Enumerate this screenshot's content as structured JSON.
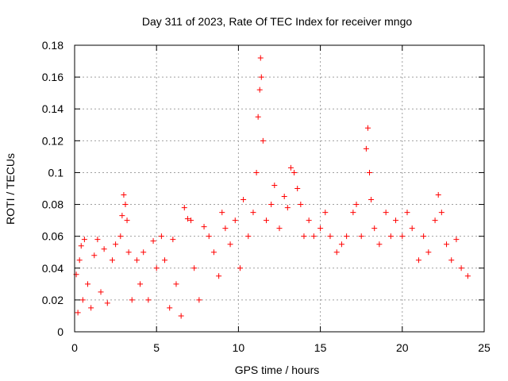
{
  "chart_data": {
    "type": "scatter",
    "title": "Day 311 of 2023, Rate Of TEC Index for receiver mngo",
    "xlabel": "GPS time / hours",
    "ylabel": "ROTI / TECUs",
    "xlim": [
      0,
      25
    ],
    "ylim": [
      0,
      0.18
    ],
    "xticks": [
      0,
      5,
      10,
      15,
      20,
      25
    ],
    "xtick_labels": [
      "0",
      "5",
      "10",
      "15",
      "20",
      "25"
    ],
    "yticks": [
      0,
      0.02,
      0.04,
      0.06,
      0.08,
      0.1,
      0.12,
      0.14,
      0.16,
      0.18
    ],
    "ytick_labels": [
      "0",
      "0.02",
      "0.04",
      "0.06",
      "0.08",
      "0.1",
      "0.12",
      "0.14",
      "0.16",
      "0.18"
    ],
    "grid": true,
    "marker": "+",
    "color": "#ff0000",
    "series": [
      {
        "name": "ROTI",
        "points": [
          [
            0.1,
            0.036
          ],
          [
            0.2,
            0.012
          ],
          [
            0.3,
            0.045
          ],
          [
            0.4,
            0.054
          ],
          [
            0.5,
            0.02
          ],
          [
            0.6,
            0.058
          ],
          [
            0.8,
            0.03
          ],
          [
            1.0,
            0.015
          ],
          [
            1.2,
            0.048
          ],
          [
            1.4,
            0.058
          ],
          [
            1.6,
            0.025
          ],
          [
            1.8,
            0.052
          ],
          [
            2.0,
            0.018
          ],
          [
            2.3,
            0.045
          ],
          [
            2.5,
            0.055
          ],
          [
            2.8,
            0.06
          ],
          [
            2.9,
            0.073
          ],
          [
            3.0,
            0.086
          ],
          [
            3.1,
            0.08
          ],
          [
            3.2,
            0.07
          ],
          [
            3.3,
            0.05
          ],
          [
            3.5,
            0.02
          ],
          [
            3.8,
            0.045
          ],
          [
            4.0,
            0.03
          ],
          [
            4.2,
            0.05
          ],
          [
            4.5,
            0.02
          ],
          [
            4.8,
            0.057
          ],
          [
            5.0,
            0.04
          ],
          [
            5.3,
            0.06
          ],
          [
            5.5,
            0.045
          ],
          [
            5.8,
            0.015
          ],
          [
            6.0,
            0.058
          ],
          [
            6.2,
            0.03
          ],
          [
            6.5,
            0.01
          ],
          [
            6.7,
            0.078
          ],
          [
            6.9,
            0.071
          ],
          [
            7.1,
            0.07
          ],
          [
            7.3,
            0.04
          ],
          [
            7.6,
            0.02
          ],
          [
            7.9,
            0.066
          ],
          [
            8.2,
            0.06
          ],
          [
            8.5,
            0.05
          ],
          [
            8.8,
            0.035
          ],
          [
            9.0,
            0.075
          ],
          [
            9.2,
            0.065
          ],
          [
            9.5,
            0.055
          ],
          [
            9.8,
            0.07
          ],
          [
            10.1,
            0.04
          ],
          [
            10.3,
            0.083
          ],
          [
            10.6,
            0.06
          ],
          [
            10.9,
            0.075
          ],
          [
            11.1,
            0.1
          ],
          [
            11.2,
            0.135
          ],
          [
            11.3,
            0.152
          ],
          [
            11.35,
            0.172
          ],
          [
            11.4,
            0.16
          ],
          [
            11.5,
            0.12
          ],
          [
            11.7,
            0.07
          ],
          [
            12.0,
            0.08
          ],
          [
            12.2,
            0.092
          ],
          [
            12.5,
            0.065
          ],
          [
            12.8,
            0.085
          ],
          [
            13.0,
            0.078
          ],
          [
            13.2,
            0.103
          ],
          [
            13.4,
            0.1
          ],
          [
            13.6,
            0.09
          ],
          [
            13.8,
            0.08
          ],
          [
            14.0,
            0.06
          ],
          [
            14.3,
            0.07
          ],
          [
            14.6,
            0.06
          ],
          [
            15.0,
            0.065
          ],
          [
            15.3,
            0.075
          ],
          [
            15.6,
            0.06
          ],
          [
            16.0,
            0.05
          ],
          [
            16.3,
            0.055
          ],
          [
            16.6,
            0.06
          ],
          [
            17.0,
            0.075
          ],
          [
            17.2,
            0.08
          ],
          [
            17.5,
            0.06
          ],
          [
            17.8,
            0.115
          ],
          [
            17.9,
            0.128
          ],
          [
            18.0,
            0.1
          ],
          [
            18.1,
            0.083
          ],
          [
            18.3,
            0.065
          ],
          [
            18.6,
            0.055
          ],
          [
            19.0,
            0.075
          ],
          [
            19.3,
            0.06
          ],
          [
            19.6,
            0.07
          ],
          [
            20.0,
            0.06
          ],
          [
            20.3,
            0.075
          ],
          [
            20.6,
            0.065
          ],
          [
            21.0,
            0.045
          ],
          [
            21.3,
            0.06
          ],
          [
            21.6,
            0.05
          ],
          [
            22.0,
            0.07
          ],
          [
            22.2,
            0.086
          ],
          [
            22.4,
            0.075
          ],
          [
            22.7,
            0.055
          ],
          [
            23.0,
            0.045
          ],
          [
            23.3,
            0.058
          ],
          [
            23.6,
            0.04
          ],
          [
            24.0,
            0.035
          ]
        ]
      }
    ]
  }
}
